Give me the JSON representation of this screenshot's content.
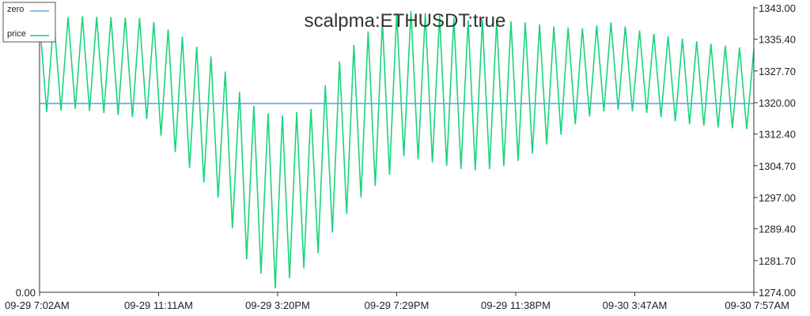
{
  "chart_data": {
    "type": "line",
    "title": "scalpma:ETHUSDT:true",
    "legend": {
      "placement": "top-left",
      "entries": [
        {
          "name": "zero",
          "color": "#5aa7ef"
        },
        {
          "name": "price",
          "color": "#19d47c"
        }
      ]
    },
    "x_tick_labels": [
      "09-29 7:02AM",
      "09-29 11:11AM",
      "09-29 3:20PM",
      "09-29 7:29PM",
      "09-29 11:38PM",
      "09-30 3:47AM",
      "09-30 7:57AM"
    ],
    "left_axis": {
      "tick_labels": [
        "0.00"
      ]
    },
    "right_axis": {
      "tick_labels": [
        "1343.00",
        "1335.40",
        "1327.70",
        "1320.00",
        "1312.40",
        "1304.70",
        "1297.00",
        "1289.40",
        "1281.70",
        "1274.00"
      ],
      "ylim": [
        1274.0,
        1343.0
      ]
    },
    "grid": false,
    "series": [
      {
        "name": "zero",
        "color": "#5aa7ef",
        "axis": "right",
        "values": [
          1319.8,
          1319.8
        ]
      },
      {
        "name": "price",
        "color": "#19d47c",
        "axis": "right",
        "x": [
          0,
          0.05,
          0.15,
          0.2,
          0.25,
          0.29,
          0.33,
          0.38,
          0.42,
          0.45,
          0.49,
          0.51,
          0.55,
          0.6,
          0.64,
          0.68,
          0.72,
          0.76,
          0.8,
          0.85,
          0.9,
          0.95,
          1
        ],
        "high": [
          1340.0,
          1341.0,
          1340.5,
          1336.0,
          1330.0,
          1320.2,
          1316.5,
          1318.5,
          1330.0,
          1336.0,
          1341.0,
          1342.5,
          1341.5,
          1340.0,
          1340.0,
          1339.5,
          1338.5,
          1338.0,
          1339.5,
          1337.0,
          1335.5,
          1334.0,
          1333.0
        ],
        "low": [
          1317.5,
          1318.5,
          1316.0,
          1306.0,
          1297.0,
          1282.0,
          1275.0,
          1281.0,
          1291.0,
          1297.0,
          1302.5,
          1307.0,
          1305.5,
          1303.5,
          1304.0,
          1306.5,
          1311.0,
          1316.0,
          1318.5,
          1317.5,
          1315.0,
          1314.0,
          1313.5
        ]
      }
    ]
  }
}
